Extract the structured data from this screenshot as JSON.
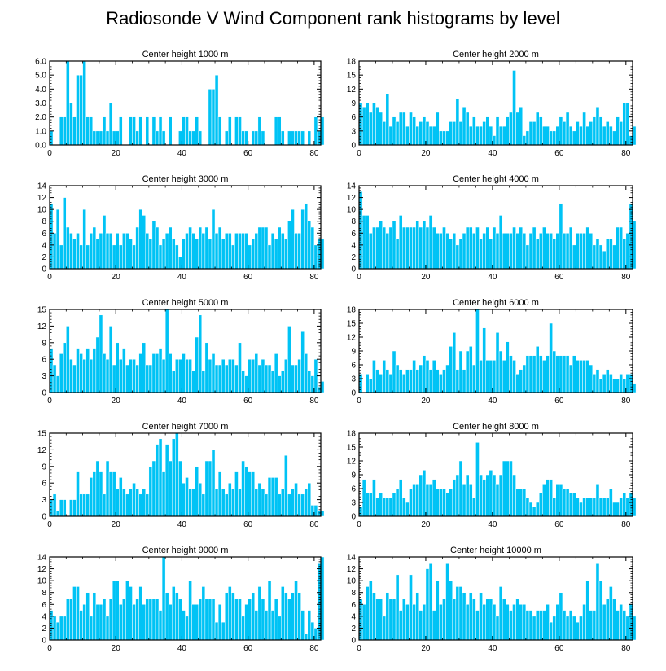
{
  "title": "Radiosonde V Wind Component rank histograms by level",
  "colors": {
    "bar": "#00c3f5",
    "bar_edge": "#ffffff",
    "axis": "#000000"
  },
  "chart_data": [
    {
      "type": "bar",
      "title": "Center height 1000 m",
      "xlim": [
        0,
        82
      ],
      "xticks": [
        0,
        20,
        40,
        60,
        80
      ],
      "ylim": [
        0,
        6
      ],
      "yticks": [
        0,
        1,
        2,
        3,
        4,
        5,
        6
      ],
      "ytick_labels": [
        "0.0",
        "1.0",
        "2.0",
        "3.0",
        "4.0",
        "5.0",
        "6.0"
      ],
      "values": [
        1,
        0,
        0,
        2,
        2,
        6,
        3,
        2,
        5,
        5,
        6,
        2,
        2,
        1,
        1,
        1,
        2,
        1,
        3,
        1,
        1,
        2,
        0,
        0,
        2,
        2,
        1,
        2,
        0,
        2,
        0,
        2,
        1,
        2,
        1,
        0,
        2,
        0,
        0,
        1,
        2,
        2,
        1,
        1,
        2,
        1,
        0,
        0,
        4,
        4,
        5,
        2,
        0,
        1,
        2,
        0,
        2,
        2,
        1,
        1,
        0,
        1,
        1,
        2,
        1,
        0,
        0,
        0,
        2,
        2,
        1,
        0,
        1,
        1,
        1,
        1,
        1,
        0,
        1,
        0,
        2,
        1,
        2
      ]
    },
    {
      "type": "bar",
      "title": "Center height 2000 m",
      "xlim": [
        0,
        82
      ],
      "xticks": [
        0,
        20,
        40,
        60,
        80
      ],
      "ylim": [
        0,
        18
      ],
      "yticks": [
        0,
        3,
        6,
        9,
        12,
        15,
        18
      ],
      "ytick_labels": [
        "0",
        "3",
        "6",
        "9",
        "12",
        "15",
        "18"
      ],
      "values": [
        9,
        8,
        9,
        7,
        9,
        8,
        7,
        5,
        11,
        4,
        6,
        5,
        7,
        7,
        4,
        7,
        6,
        4,
        5,
        6,
        5,
        4,
        4,
        7,
        3,
        3,
        3,
        5,
        5,
        10,
        5,
        8,
        7,
        4,
        6,
        4,
        4,
        5,
        6,
        4,
        2,
        6,
        4,
        4,
        6,
        7,
        16,
        7,
        8,
        2,
        3,
        5,
        5,
        7,
        6,
        4,
        4,
        3,
        3,
        4,
        6,
        5,
        7,
        4,
        3,
        5,
        4,
        7,
        4,
        5,
        6,
        8,
        6,
        4,
        5,
        4,
        3,
        6,
        5,
        9,
        9,
        2,
        4
      ]
    },
    {
      "type": "bar",
      "title": "Center height 3000 m",
      "xlim": [
        0,
        82
      ],
      "xticks": [
        0,
        20,
        40,
        60,
        80
      ],
      "ylim": [
        0,
        14
      ],
      "yticks": [
        0,
        2,
        4,
        6,
        8,
        10,
        12,
        14
      ],
      "ytick_labels": [
        "0",
        "2",
        "4",
        "6",
        "8",
        "10",
        "12",
        "14"
      ],
      "values": [
        11,
        6,
        10,
        4,
        12,
        7,
        6,
        5,
        6,
        4,
        10,
        4,
        6,
        7,
        5,
        6,
        9,
        6,
        6,
        4,
        6,
        4,
        6,
        6,
        5,
        4,
        7,
        10,
        9,
        6,
        5,
        8,
        7,
        4,
        5,
        6,
        7,
        5,
        4,
        2,
        5,
        6,
        7,
        6,
        5,
        7,
        6,
        7,
        5,
        10,
        6,
        7,
        5,
        6,
        6,
        4,
        6,
        6,
        6,
        6,
        4,
        5,
        6,
        7,
        7,
        7,
        4,
        6,
        5,
        7,
        6,
        5,
        8,
        10,
        6,
        6,
        10,
        11,
        8,
        7,
        4,
        5,
        5
      ]
    },
    {
      "type": "bar",
      "title": "Center height 4000 m",
      "xlim": [
        0,
        82
      ],
      "xticks": [
        0,
        20,
        40,
        60,
        80
      ],
      "ylim": [
        0,
        14
      ],
      "yticks": [
        0,
        2,
        4,
        6,
        8,
        10,
        12,
        14
      ],
      "ytick_labels": [
        "0",
        "2",
        "4",
        "6",
        "8",
        "10",
        "12",
        "14"
      ],
      "values": [
        13,
        9,
        9,
        6,
        7,
        7,
        8,
        7,
        6,
        7,
        8,
        5,
        9,
        7,
        7,
        7,
        7,
        8,
        7,
        8,
        7,
        9,
        7,
        6,
        6,
        7,
        6,
        5,
        6,
        4,
        5,
        6,
        7,
        7,
        6,
        7,
        5,
        6,
        7,
        5,
        7,
        6,
        9,
        6,
        6,
        6,
        7,
        6,
        7,
        6,
        4,
        6,
        7,
        5,
        6,
        7,
        6,
        6,
        5,
        6,
        11,
        6,
        6,
        7,
        4,
        6,
        6,
        6,
        7,
        6,
        4,
        5,
        4,
        3,
        5,
        5,
        4,
        7,
        7,
        5,
        6,
        11,
        8
      ]
    },
    {
      "type": "bar",
      "title": "Center height 5000 m",
      "xlim": [
        0,
        82
      ],
      "xticks": [
        0,
        20,
        40,
        60,
        80
      ],
      "ylim": [
        0,
        15
      ],
      "yticks": [
        0,
        3,
        6,
        9,
        12,
        15
      ],
      "ytick_labels": [
        "0",
        "3",
        "6",
        "9",
        "12",
        "15"
      ],
      "values": [
        8,
        5,
        3,
        7,
        9,
        12,
        6,
        5,
        8,
        7,
        6,
        8,
        6,
        8,
        10,
        14,
        7,
        6,
        12,
        5,
        9,
        6,
        8,
        5,
        6,
        6,
        5,
        7,
        9,
        5,
        5,
        7,
        7,
        8,
        6,
        15,
        7,
        4,
        6,
        6,
        7,
        6,
        6,
        4,
        10,
        14,
        4,
        9,
        6,
        7,
        5,
        5,
        6,
        5,
        6,
        6,
        5,
        9,
        4,
        3,
        6,
        6,
        7,
        5,
        6,
        5,
        5,
        4,
        7,
        3,
        4,
        6,
        12,
        5,
        5,
        6,
        11,
        7,
        4,
        3,
        6,
        1,
        2
      ]
    },
    {
      "type": "bar",
      "title": "Center height 6000 m",
      "xlim": [
        0,
        82
      ],
      "xticks": [
        0,
        20,
        40,
        60,
        80
      ],
      "ylim": [
        0,
        18
      ],
      "yticks": [
        0,
        3,
        6,
        9,
        12,
        15,
        18
      ],
      "ytick_labels": [
        "0",
        "3",
        "6",
        "9",
        "12",
        "15",
        "18"
      ],
      "values": [
        4,
        0,
        4,
        3,
        7,
        5,
        4,
        7,
        5,
        4,
        9,
        6,
        5,
        4,
        5,
        5,
        7,
        5,
        6,
        8,
        7,
        5,
        7,
        5,
        4,
        5,
        6,
        10,
        13,
        5,
        9,
        5,
        9,
        10,
        6,
        18,
        7,
        14,
        7,
        7,
        7,
        13,
        9,
        7,
        11,
        8,
        7,
        4,
        5,
        6,
        8,
        8,
        8,
        10,
        8,
        7,
        8,
        15,
        9,
        8,
        8,
        8,
        8,
        6,
        8,
        7,
        7,
        7,
        7,
        6,
        4,
        5,
        3,
        4,
        5,
        4,
        3,
        3,
        4,
        3,
        4,
        4,
        2
      ]
    },
    {
      "type": "bar",
      "title": "Center height 7000 m",
      "xlim": [
        0,
        82
      ],
      "xticks": [
        0,
        20,
        40,
        60,
        80
      ],
      "ylim": [
        0,
        15
      ],
      "yticks": [
        0,
        3,
        6,
        9,
        12,
        15
      ],
      "ytick_labels": [
        "0",
        "3",
        "6",
        "9",
        "12",
        "15"
      ],
      "values": [
        3,
        4,
        1,
        3,
        3,
        0,
        3,
        3,
        8,
        4,
        4,
        4,
        7,
        8,
        10,
        8,
        4,
        10,
        8,
        8,
        5,
        7,
        5,
        4,
        5,
        6,
        5,
        4,
        5,
        4,
        9,
        10,
        13,
        14,
        8,
        13,
        10,
        14,
        15,
        10,
        6,
        7,
        5,
        5,
        9,
        6,
        4,
        10,
        10,
        12,
        5,
        8,
        5,
        4,
        6,
        5,
        8,
        5,
        10,
        9,
        8,
        8,
        5,
        6,
        5,
        4,
        7,
        7,
        7,
        4,
        5,
        11,
        4,
        5,
        6,
        4,
        4,
        5,
        6,
        2,
        2,
        1,
        1
      ]
    },
    {
      "type": "bar",
      "title": "Center height 8000 m",
      "xlim": [
        0,
        82
      ],
      "xticks": [
        0,
        20,
        40,
        60,
        80
      ],
      "ylim": [
        0,
        18
      ],
      "yticks": [
        0,
        3,
        6,
        9,
        12,
        15,
        18
      ],
      "ytick_labels": [
        "0",
        "3",
        "6",
        "9",
        "12",
        "15",
        "18"
      ],
      "values": [
        2,
        8,
        5,
        5,
        8,
        4,
        5,
        4,
        4,
        4,
        5,
        6,
        8,
        4,
        3,
        6,
        7,
        7,
        9,
        10,
        7,
        7,
        8,
        6,
        6,
        6,
        5,
        6,
        8,
        9,
        12,
        7,
        9,
        7,
        4,
        16,
        9,
        8,
        9,
        10,
        9,
        7,
        9,
        12,
        12,
        12,
        9,
        6,
        6,
        6,
        4,
        3,
        2,
        3,
        5,
        7,
        8,
        8,
        4,
        7,
        7,
        6,
        6,
        5,
        5,
        4,
        3,
        4,
        4,
        4,
        4,
        7,
        4,
        4,
        4,
        6,
        3,
        3,
        4,
        5,
        4,
        5,
        4
      ]
    },
    {
      "type": "bar",
      "title": "Center height 9000 m",
      "xlim": [
        0,
        82
      ],
      "xticks": [
        0,
        20,
        40,
        60,
        80
      ],
      "ylim": [
        0,
        14
      ],
      "yticks": [
        0,
        2,
        4,
        6,
        8,
        10,
        12,
        14
      ],
      "ytick_labels": [
        "0",
        "2",
        "4",
        "6",
        "8",
        "10",
        "12",
        "14"
      ],
      "values": [
        5,
        4,
        3,
        4,
        4,
        7,
        7,
        9,
        9,
        5,
        6,
        8,
        4,
        8,
        6,
        6,
        7,
        4,
        7,
        10,
        10,
        6,
        7,
        10,
        9,
        6,
        7,
        9,
        6,
        7,
        7,
        7,
        7,
        5,
        14,
        8,
        6,
        9,
        8,
        7,
        5,
        4,
        10,
        6,
        6,
        7,
        9,
        7,
        7,
        7,
        3,
        6,
        3,
        8,
        9,
        8,
        7,
        7,
        4,
        6,
        7,
        8,
        5,
        9,
        7,
        5,
        10,
        5,
        7,
        4,
        9,
        8,
        7,
        8,
        10,
        8,
        5,
        1,
        5,
        3,
        2,
        13,
        14
      ]
    },
    {
      "type": "bar",
      "title": "Center height 10000 m",
      "xlim": [
        0,
        82
      ],
      "xticks": [
        0,
        20,
        40,
        60,
        80
      ],
      "ylim": [
        0,
        14
      ],
      "yticks": [
        0,
        2,
        4,
        6,
        8,
        10,
        12,
        14
      ],
      "ytick_labels": [
        "0",
        "2",
        "4",
        "6",
        "8",
        "10",
        "12",
        "14"
      ],
      "values": [
        7,
        6,
        9,
        10,
        8,
        7,
        7,
        4,
        8,
        7,
        7,
        11,
        5,
        7,
        6,
        11,
        6,
        8,
        5,
        6,
        12,
        13,
        5,
        10,
        6,
        7,
        13,
        10,
        7,
        9,
        9,
        8,
        6,
        8,
        7,
        5,
        8,
        6,
        7,
        7,
        6,
        4,
        9,
        7,
        6,
        5,
        6,
        7,
        6,
        6,
        5,
        5,
        4,
        5,
        5,
        5,
        6,
        3,
        4,
        6,
        8,
        5,
        4,
        5,
        4,
        3,
        4,
        6,
        10,
        5,
        5,
        13,
        10,
        6,
        7,
        9,
        7,
        5,
        6,
        5,
        4,
        6,
        4
      ]
    }
  ]
}
